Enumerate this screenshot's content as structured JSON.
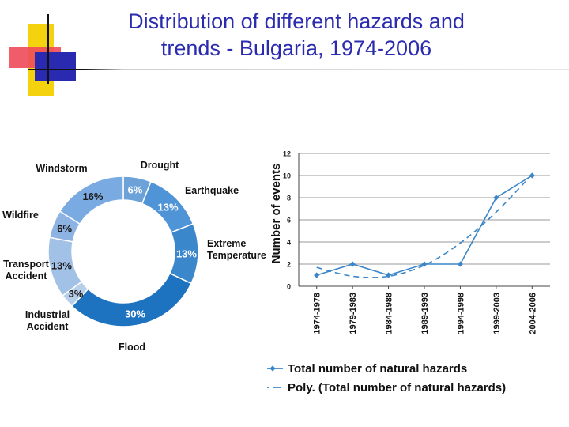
{
  "title": "Distribution of different hazards and trends - Bulgaria, 1974-2006",
  "title_lines": [
    "Distribution of different hazards and",
    "trends - Bulgaria, 1974-2006"
  ],
  "colors": {
    "title": "#2b2bb0",
    "deco_yellow": "#f5d20e",
    "deco_red": "#f04a5a",
    "deco_blue": "#2a2ab0",
    "line": "#3a86c8"
  },
  "chart_data": [
    {
      "type": "pie",
      "variant": "donut",
      "slices": [
        {
          "label": "Drought",
          "label_lines": [
            "Drought"
          ],
          "value": 6,
          "display": "6%",
          "color": "#6da2d9"
        },
        {
          "label": "Earthquake",
          "label_lines": [
            "Earthquake"
          ],
          "value": 13,
          "display": "13%",
          "color": "#4f94d6"
        },
        {
          "label": "Extreme Temperature",
          "label_lines": [
            "Extreme",
            "Temperature"
          ],
          "value": 13,
          "display": "13%",
          "color": "#3b87cc"
        },
        {
          "label": "Flood",
          "label_lines": [
            "Flood"
          ],
          "value": 30,
          "display": "30%",
          "color": "#1e73c0"
        },
        {
          "label": "Industrial Accident",
          "label_lines": [
            "Industrial",
            "Accident"
          ],
          "value": 3,
          "display": "3%",
          "color": "#b7cfe9"
        },
        {
          "label": "Transport Accident",
          "label_lines": [
            "Transport",
            "Accident"
          ],
          "value": 13,
          "display": "13%",
          "color": "#a2c1e6"
        },
        {
          "label": "Wildfire",
          "label_lines": [
            "Wildfire"
          ],
          "value": 6,
          "display": "6%",
          "color": "#8db3e2"
        },
        {
          "label": "Windstorm",
          "label_lines": [
            "Windstorm"
          ],
          "value": 16,
          "display": "16%",
          "color": "#7aaae2"
        }
      ]
    },
    {
      "type": "line",
      "ylabel": "Number of events",
      "xlabel": "",
      "categories": [
        "1974-1978",
        "1979-1983",
        "1984-1988",
        "1989-1993",
        "1994-1998",
        "1999-2003",
        "2004-2006"
      ],
      "ylim": [
        0,
        12
      ],
      "yticks": [
        0,
        2,
        4,
        6,
        8,
        10,
        12
      ],
      "grid": true,
      "series": [
        {
          "name": "Total number of natural hazards",
          "values": [
            1,
            2,
            1,
            2,
            2,
            8,
            10
          ],
          "style": "solid-diamond"
        },
        {
          "name": "Poly. (Total number of natural hazards)",
          "values": [
            1.7,
            0.9,
            0.9,
            1.9,
            3.9,
            6.7,
            10.1
          ],
          "style": "dashed"
        }
      ],
      "legend": "bottom"
    }
  ]
}
